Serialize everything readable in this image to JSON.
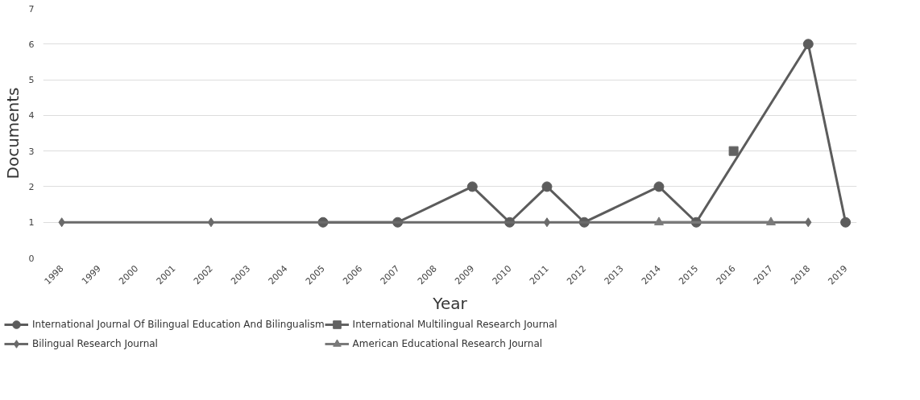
{
  "chart_data": {
    "type": "line",
    "xlabel": "Year",
    "ylabel": "Documents",
    "xlim": [
      1997.5,
      2019.3
    ],
    "xticks": [
      1998,
      1999,
      2000,
      2001,
      2002,
      2003,
      2004,
      2005,
      2006,
      2007,
      2008,
      2009,
      2010,
      2011,
      2012,
      2013,
      2014,
      2015,
      2016,
      2017,
      2018,
      2019
    ],
    "ylim": [
      0,
      7
    ],
    "yticks": [
      0,
      1,
      2,
      3,
      4,
      5,
      6,
      7
    ],
    "grid": "y",
    "legend": "bottom",
    "series": [
      {
        "name": "International Journal Of Bilingual Education And Bilingualism",
        "color": "#5c5c5c",
        "marker": "circle",
        "x": [
          2005,
          2007,
          2009,
          2010,
          2011,
          2012,
          2014,
          2015,
          2018,
          2019
        ],
        "values": [
          1,
          1,
          2,
          1,
          2,
          1,
          2,
          1,
          6,
          1
        ]
      },
      {
        "name": "Bilingual Research Journal",
        "color": "#6a6a6a",
        "marker": "diamond",
        "x": [
          1998,
          2002,
          2011,
          2018
        ],
        "values": [
          1,
          1,
          1,
          1
        ]
      },
      {
        "name": "International Multilingual Research Journal",
        "color": "#626262",
        "marker": "square",
        "x": [
          2016
        ],
        "values": [
          3
        ]
      },
      {
        "name": "American Educational Research Journal",
        "color": "#7a7a7a",
        "marker": "triangle",
        "x": [
          2014,
          2017
        ],
        "values": [
          1,
          1
        ]
      }
    ]
  }
}
